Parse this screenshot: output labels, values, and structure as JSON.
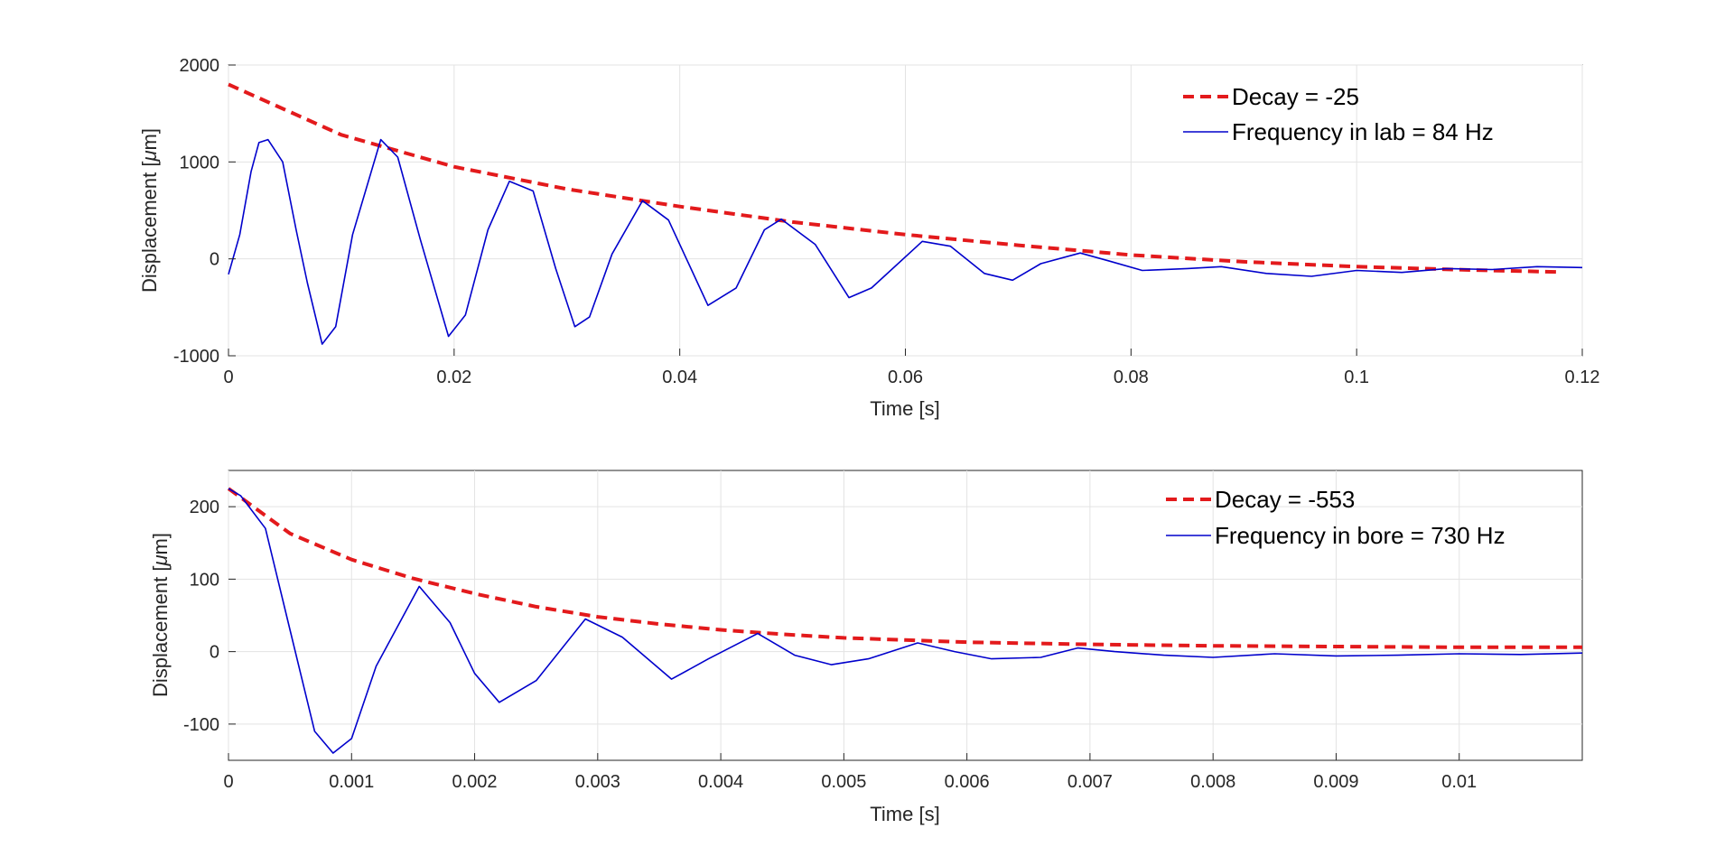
{
  "chart_data": [
    {
      "type": "line",
      "xlabel": "Time [s]",
      "ylabel_prefix": "Displacement [",
      "ylabel_mu": "μ",
      "ylabel_suffix": "m]",
      "xlim": [
        0,
        0.12
      ],
      "ylim": [
        -1000,
        2000
      ],
      "xticks": [
        0,
        0.02,
        0.04,
        0.06,
        0.08,
        0.1,
        0.12
      ],
      "xtick_labels": [
        "0",
        "0.02",
        "0.04",
        "0.06",
        "0.08",
        "0.1",
        "0.12"
      ],
      "yticks": [
        -1000,
        0,
        1000,
        2000
      ],
      "ytick_labels": [
        "-1000",
        "0",
        "1000",
        "2000"
      ],
      "grid": true,
      "legend_position": "top-right",
      "series": [
        {
          "name": "Decay = -25",
          "style": "dashed",
          "color": "#e31a1c",
          "x": [
            0,
            0.01,
            0.02,
            0.03,
            0.04,
            0.05,
            0.06,
            0.07,
            0.08,
            0.09,
            0.1,
            0.11,
            0.118
          ],
          "y": [
            1800,
            1280,
            950,
            720,
            540,
            380,
            250,
            140,
            40,
            -30,
            -80,
            -115,
            -135
          ]
        },
        {
          "name": "Frequency in lab = 84 Hz",
          "style": "solid",
          "color": "#0000cc",
          "x": [
            0,
            0.001,
            0.002,
            0.0027,
            0.0035,
            0.0048,
            0.006,
            0.007,
            0.0083,
            0.0095,
            0.011,
            0.0135,
            0.015,
            0.017,
            0.0195,
            0.021,
            0.023,
            0.0249,
            0.027,
            0.029,
            0.0307,
            0.032,
            0.034,
            0.0367,
            0.039,
            0.0425,
            0.045,
            0.0475,
            0.049,
            0.052,
            0.055,
            0.057,
            0.0615,
            0.064,
            0.067,
            0.0695,
            0.072,
            0.0755,
            0.078,
            0.081,
            0.085,
            0.088,
            0.092,
            0.096,
            0.1,
            0.104,
            0.108,
            0.112,
            0.116,
            0.12
          ],
          "y": [
            -160,
            250,
            900,
            1200,
            1230,
            1000,
            300,
            -250,
            -880,
            -700,
            250,
            1230,
            1050,
            200,
            -800,
            -580,
            300,
            800,
            700,
            -100,
            -700,
            -600,
            50,
            600,
            400,
            -480,
            -300,
            300,
            410,
            150,
            -400,
            -300,
            180,
            130,
            -150,
            -220,
            -50,
            60,
            -20,
            -120,
            -100,
            -80,
            -150,
            -180,
            -120,
            -140,
            -100,
            -110,
            -80,
            -90
          ]
        }
      ]
    },
    {
      "type": "line",
      "xlabel": "Time [s]",
      "ylabel_prefix": "Displacement [",
      "ylabel_mu": "μ",
      "ylabel_suffix": "m]",
      "xlim": [
        0,
        0.011
      ],
      "ylim": [
        -150,
        250
      ],
      "xticks": [
        0,
        0.001,
        0.002,
        0.003,
        0.004,
        0.005,
        0.006,
        0.007,
        0.008,
        0.009,
        0.01
      ],
      "xtick_labels": [
        "0",
        "0.001",
        "0.002",
        "0.003",
        "0.004",
        "0.005",
        "0.006",
        "0.007",
        "0.008",
        "0.009",
        "0.01"
      ],
      "yticks": [
        -100,
        0,
        100,
        200
      ],
      "ytick_labels": [
        "-100",
        "0",
        "100",
        "200"
      ],
      "grid": true,
      "legend_position": "top-right",
      "series": [
        {
          "name": "Decay = -553",
          "style": "dashed",
          "color": "#e31a1c",
          "x": [
            0,
            0.0005,
            0.001,
            0.0015,
            0.002,
            0.0025,
            0.003,
            0.0035,
            0.004,
            0.0045,
            0.005,
            0.0055,
            0.006,
            0.007,
            0.008,
            0.009,
            0.01,
            0.011
          ],
          "y": [
            225,
            163,
            127,
            101,
            80,
            62,
            48,
            38,
            30,
            24,
            19,
            16,
            13,
            10,
            8,
            7,
            6,
            6
          ]
        },
        {
          "name": "Frequency in bore = 730 Hz",
          "style": "solid",
          "color": "#0000cc",
          "x": [
            0,
            0.0001,
            0.0003,
            0.0005,
            0.0007,
            0.00085,
            0.001,
            0.0012,
            0.00155,
            0.0018,
            0.002,
            0.0022,
            0.0025,
            0.0029,
            0.0032,
            0.0036,
            0.0039,
            0.0043,
            0.0046,
            0.0049,
            0.0052,
            0.0056,
            0.0059,
            0.0062,
            0.0066,
            0.0069,
            0.0072,
            0.0076,
            0.008,
            0.0085,
            0.009,
            0.0095,
            0.01,
            0.0105,
            0.011
          ],
          "y": [
            225,
            215,
            170,
            30,
            -110,
            -140,
            -120,
            -20,
            90,
            40,
            -30,
            -70,
            -40,
            45,
            20,
            -38,
            -10,
            25,
            -5,
            -18,
            -10,
            12,
            0,
            -10,
            -8,
            5,
            0,
            -5,
            -8,
            -3,
            -6,
            -5,
            -3,
            -4,
            -2
          ]
        }
      ]
    }
  ]
}
